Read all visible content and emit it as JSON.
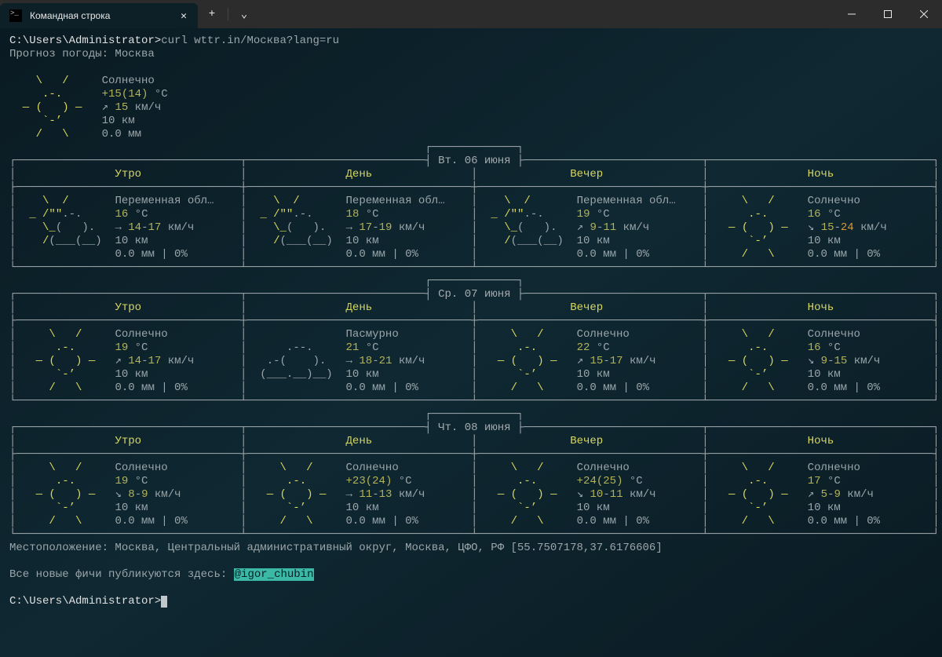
{
  "window": {
    "tab_title": "Командная строка",
    "new_tab_plus": "+",
    "dropdown_glyph": "⌄"
  },
  "colors": {
    "bg_titlebar": "#2c2c2c",
    "bg_terminal": "#0d2027",
    "text_default": "#c0c8cc",
    "text_yellow": "#d8d85e",
    "text_green": "#8fc97a",
    "text_olive": "#b3b357",
    "text_orange": "#d69838",
    "text_cyan": "#4ec9b0",
    "hl_cyan": "#3cb8a6",
    "frame": "#a4acb0"
  },
  "prompt1": "C:\\Users\\Administrator>",
  "command": "curl wttr.in/Москва?lang=ru",
  "forecast_header": "Прогноз погоды: Москва",
  "current": {
    "cond": "Солнечно",
    "temp_main": "+15",
    "temp_paren": "(14)",
    "temp_unit": " °C",
    "wind_arrow": "↗ ",
    "wind_val": "15",
    "wind_unit": " км/ч",
    "vis": "10 км",
    "precip": "0.0 мм"
  },
  "ascii_sun": [
    "    \\   /    ",
    "     .-.     ",
    "  ― (   ) ―  ",
    "     `-’     ",
    "    /   \\    "
  ],
  "ascii_partly": [
    "   \\  /      ",
    " _ /\"\".-.    ",
    "   \\_(   ).  ",
    "   /(___(__) "
  ],
  "ascii_overcast": [
    "             ",
    "     .--.    ",
    "  .-(    ).  ",
    " (___.__)__) "
  ],
  "period_labels": {
    "morning": "Утро",
    "noon": "День",
    "evening": "Вечер",
    "night": "Ночь"
  },
  "days": [
    {
      "date": "Вт. 06 июня",
      "cells": [
        {
          "icon": "partly",
          "cond": "Переменная обл…",
          "temp": "16",
          "t_unit": " °C",
          "w_arrow": "→ ",
          "w_lo": "14",
          "w_hi": "17",
          "w_unit": " км/ч",
          "vis": "10 км",
          "pr": "0.0 мм | 0%"
        },
        {
          "icon": "partly",
          "cond": "Переменная обл…",
          "temp": "18",
          "t_unit": " °C",
          "w_arrow": "→ ",
          "w_lo": "17",
          "w_hi": "19",
          "w_unit": " км/ч",
          "vis": "10 км",
          "pr": "0.0 мм | 0%"
        },
        {
          "icon": "partly",
          "cond": "Переменная обл…",
          "temp": "19",
          "t_unit": " °C",
          "w_arrow": "↗ ",
          "w_lo": "9",
          "w_hi": "11",
          "w_unit": " км/ч",
          "vis": "10 км",
          "pr": "0.0 мм | 0%"
        },
        {
          "icon": "sun",
          "cond": "Солнечно",
          "temp": "16",
          "t_unit": " °C",
          "w_arrow": "↘ ",
          "w_lo": "15",
          "w_hi": "24",
          "w_hi_hot": true,
          "w_unit": " км/ч",
          "vis": "10 км",
          "pr": "0.0 мм | 0%"
        }
      ]
    },
    {
      "date": "Ср. 07 июня",
      "cells": [
        {
          "icon": "sun",
          "cond": "Солнечно",
          "temp": "19",
          "t_unit": " °C",
          "w_arrow": "↗ ",
          "w_lo": "14",
          "w_hi": "17",
          "w_unit": " км/ч",
          "vis": "10 км",
          "pr": "0.0 мм | 0%"
        },
        {
          "icon": "overcast",
          "cond": "Пасмурно",
          "temp": "21",
          "t_unit": " °C",
          "w_arrow": "→ ",
          "w_lo": "18",
          "w_hi": "21",
          "w_unit": " км/ч",
          "vis": "10 км",
          "pr": "0.0 мм | 0%"
        },
        {
          "icon": "sun",
          "cond": "Солнечно",
          "temp": "22",
          "t_unit": " °C",
          "w_arrow": "↗ ",
          "w_lo": "15",
          "w_hi": "17",
          "w_unit": " км/ч",
          "vis": "10 км",
          "pr": "0.0 мм | 0%"
        },
        {
          "icon": "sun",
          "cond": "Солнечно",
          "temp": "16",
          "t_unit": " °C",
          "w_arrow": "↘ ",
          "w_lo": "9",
          "w_hi": "15",
          "w_unit": " км/ч",
          "vis": "10 км",
          "pr": "0.0 мм | 0%"
        }
      ]
    },
    {
      "date": "Чт. 08 июня",
      "cells": [
        {
          "icon": "sun",
          "cond": "Солнечно",
          "temp": "19",
          "t_unit": " °C",
          "w_arrow": "↘ ",
          "w_lo": "8",
          "w_hi": "9",
          "w_unit": " км/ч",
          "vis": "10 км",
          "pr": "0.0 мм | 0%"
        },
        {
          "icon": "sun",
          "cond": "Солнечно",
          "temp": "+23",
          "temp_paren": "(24)",
          "t_unit": " °C",
          "w_arrow": "→ ",
          "w_lo": "11",
          "w_hi": "13",
          "w_unit": " км/ч",
          "vis": "10 км",
          "pr": "0.0 мм | 0%"
        },
        {
          "icon": "sun",
          "cond": "Солнечно",
          "temp": "+24",
          "temp_paren": "(25)",
          "t_unit": " °C",
          "w_arrow": "↘ ",
          "w_lo": "10",
          "w_hi": "11",
          "w_unit": " км/ч",
          "vis": "10 км",
          "pr": "0.0 мм | 0%"
        },
        {
          "icon": "sun",
          "cond": "Солнечно",
          "temp": "17",
          "t_unit": " °C",
          "w_arrow": "↗ ",
          "w_lo": "5",
          "w_hi": "9",
          "w_unit": " км/ч",
          "vis": "10 км",
          "pr": "0.0 мм | 0%"
        }
      ]
    }
  ],
  "location_line": "Местоположение: Москва, Центральный административный округ, Москва, ЦФО, РФ [55.7507178,37.6176606]",
  "footer_prefix": "Все новые фичи публикуются здесь: ",
  "footer_handle": "@igor_chubin",
  "prompt2": "C:\\Users\\Administrator>"
}
